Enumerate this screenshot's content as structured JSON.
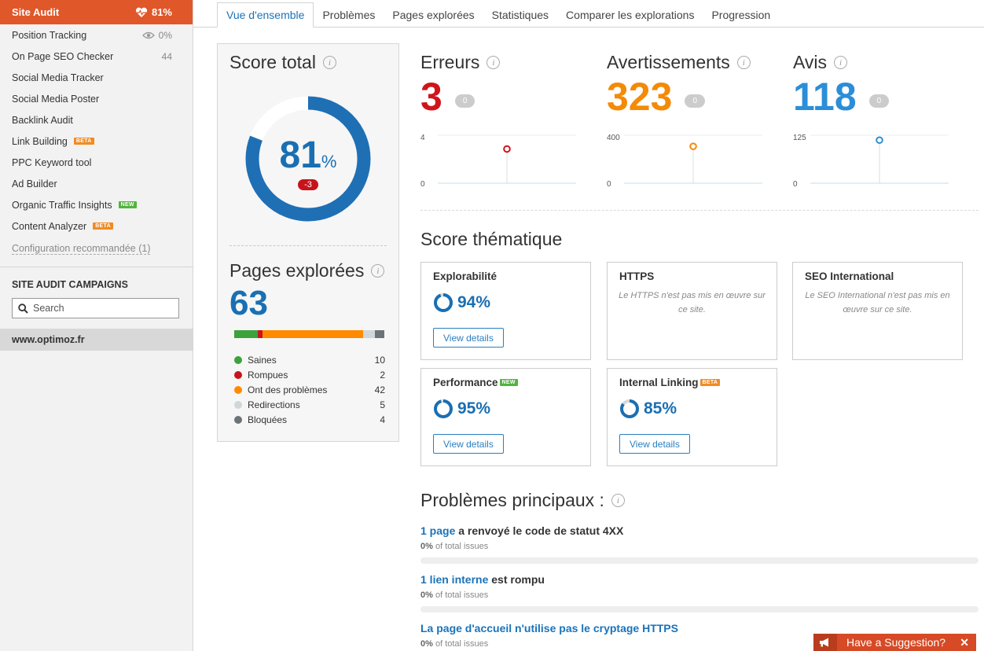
{
  "sidebar": {
    "active": {
      "label": "Site Audit",
      "value": "81%"
    },
    "items": [
      {
        "label": "Position Tracking",
        "value": "0%"
      },
      {
        "label": "On Page SEO Checker",
        "value": "44"
      },
      {
        "label": "Social Media Tracker"
      },
      {
        "label": "Social Media Poster"
      },
      {
        "label": "Backlink Audit"
      },
      {
        "label": "Link Building",
        "badge": "BETA"
      },
      {
        "label": "PPC Keyword tool"
      },
      {
        "label": "Ad Builder"
      },
      {
        "label": "Organic Traffic Insights",
        "badge": "NEW"
      },
      {
        "label": "Content Analyzer",
        "badge": "BETA"
      }
    ],
    "config_link": "Configuration recommandée (1)",
    "campaigns_heading": "SITE AUDIT CAMPAIGNS",
    "search_placeholder": "Search",
    "project": "www.optimoz.fr"
  },
  "tabs": [
    "Vue d'ensemble",
    "Problèmes",
    "Pages explorées",
    "Statistiques",
    "Comparer les explorations",
    "Progression"
  ],
  "score": {
    "title": "Score total",
    "value": "81",
    "unit": "%",
    "delta": "-3",
    "fraction": 0.81
  },
  "pages": {
    "title": "Pages explorées",
    "total": "63",
    "legend": [
      {
        "label": "Saines",
        "count": "10",
        "color": "#3ca23c"
      },
      {
        "label": "Rompues",
        "count": "2",
        "color": "#c7141b"
      },
      {
        "label": "Ont des problèmes",
        "count": "42",
        "color": "#ff8a00"
      },
      {
        "label": "Redirections",
        "count": "5",
        "color": "#cfd7db"
      },
      {
        "label": "Bloquées",
        "count": "4",
        "color": "#6b7377"
      }
    ]
  },
  "metrics": [
    {
      "title": "Erreurs",
      "value": "3",
      "delta": "0",
      "color": "#d0141b",
      "ymax": "4",
      "ymin": "0",
      "point": 3,
      "max": 4
    },
    {
      "title": "Avertissements",
      "value": "323",
      "delta": "0",
      "color": "#f58a07",
      "ymax": "400",
      "ymin": "0",
      "point": 323,
      "max": 400
    },
    {
      "title": "Avis",
      "value": "118",
      "delta": "0",
      "color": "#2b8ed8",
      "ymax": "125",
      "ymin": "0",
      "point": 118,
      "max": 125
    }
  ],
  "thematic": {
    "title": "Score thématique",
    "cards": [
      {
        "title": "Explorabilité",
        "score": "94%",
        "button": "View details",
        "fraction": 0.94
      },
      {
        "title": "HTTPS",
        "message": "Le HTTPS n'est pas mis en œuvre sur ce site."
      },
      {
        "title": "SEO International",
        "message": "Le SEO International n'est pas mis en œuvre sur ce site."
      },
      {
        "title": "Performance",
        "badge": "NEW",
        "score": "95%",
        "button": "View details",
        "fraction": 0.95
      },
      {
        "title": "Internal Linking",
        "badge": "BETA",
        "score": "85%",
        "button": "View details",
        "fraction": 0.85
      }
    ]
  },
  "issues": {
    "title": "Problèmes principaux :",
    "list": [
      {
        "link": "1 page",
        "text": " a renvoyé le code de statut 4XX",
        "pct": "0%",
        "pct_label": " of total issues"
      },
      {
        "link": "1 lien interne",
        "text": " est rompu",
        "pct": "0%",
        "pct_label": " of total issues"
      },
      {
        "link": "La page d'accueil n'utilise pas le cryptage HTTPS",
        "text": "",
        "pct": "0%",
        "pct_label": " of total issues"
      }
    ]
  },
  "suggestion": {
    "label": "Have a Suggestion?",
    "close": "✕"
  },
  "colors": {
    "accent": "#e0572a",
    "blue": "#1a6fb3"
  }
}
